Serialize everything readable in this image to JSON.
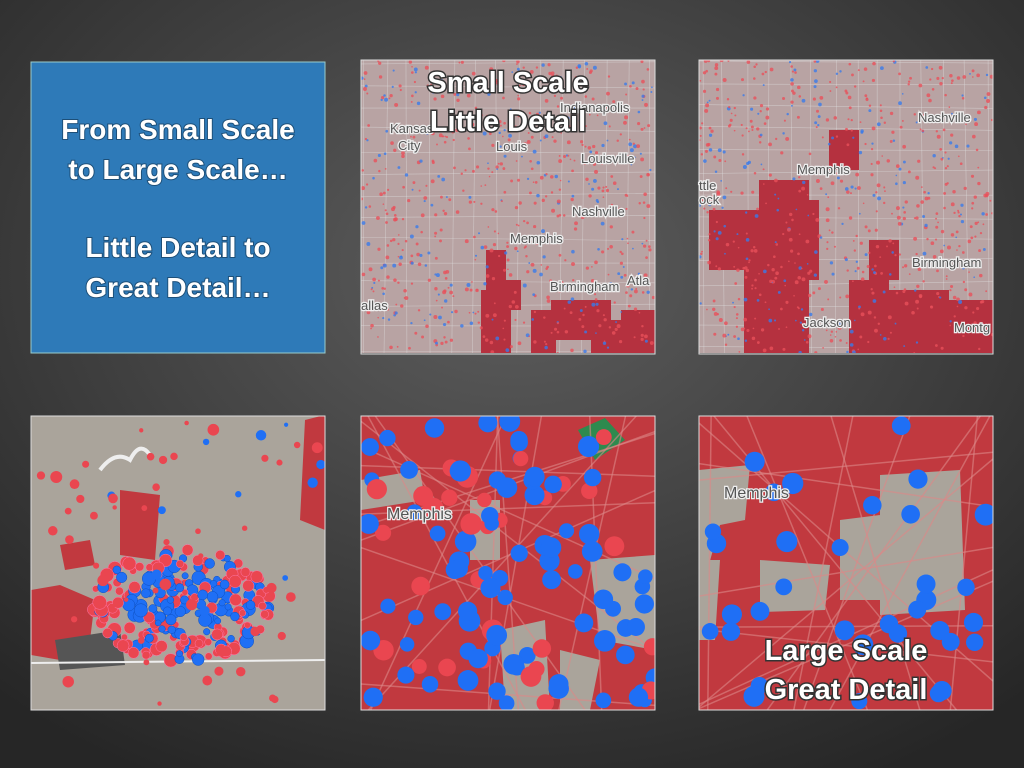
{
  "intro": {
    "lines": [
      "From Small Scale",
      "to Large Scale…",
      "Little Detail to",
      "Great Detail…"
    ]
  },
  "small_scale_map": {
    "caption": [
      "Small Scale",
      "Little Detail"
    ],
    "labels": [
      "Kansas",
      "City",
      "Louis",
      "Indianapolis",
      "Louisville",
      "Nashville",
      "Memphis",
      "Birmingham",
      "Atla",
      "allas"
    ]
  },
  "medium_scale_map": {
    "labels": [
      "Nashville",
      "Memphis",
      "ttle",
      "ock",
      "Birmingham",
      "Jackson",
      "Montg"
    ]
  },
  "zoomed_map": {
    "labels": [
      "Memphis"
    ]
  },
  "large_scale_map": {
    "caption": [
      "Large Scale",
      "Great Detail"
    ],
    "labels": [
      "Memphis"
    ]
  }
}
